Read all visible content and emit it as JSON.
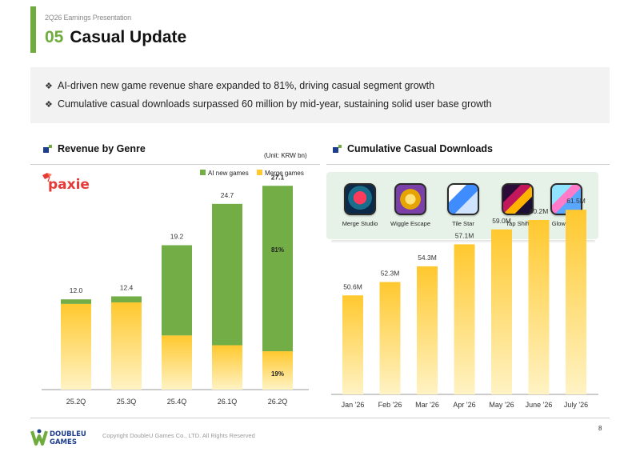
{
  "header": {
    "kicker": "2Q26 Earnings Presentation",
    "section_number": "05",
    "title": "Casual Update"
  },
  "summary": [
    "AI-driven new game revenue share expanded to 81%, driving casual segment growth",
    "Cumulative casual downloads surpassed 60 million by mid-year, sustaining solid user base growth"
  ],
  "left_panel": {
    "heading": "Revenue by Genre",
    "unit": "(Unit: KRW bn)",
    "logo_text": "paxie"
  },
  "right_panel": {
    "heading": "Cumulative Casual Downloads",
    "games": [
      {
        "name": "Merge Studio",
        "icon": "merge-studio-icon"
      },
      {
        "name": "Wiggle Escape",
        "icon": "wiggle-escape-icon"
      },
      {
        "name": "Tile Star",
        "icon": "tile-star-icon"
      },
      {
        "name": "Tap Shift",
        "icon": "tap-shift-icon"
      },
      {
        "name": "Glow Tales",
        "icon": "glow-tales-icon"
      }
    ]
  },
  "colors": {
    "accent": "#6fac3d",
    "ai_green": "#72ad46",
    "merge_yellow_top": "#ffc82e",
    "merge_yellow_bottom": "#fff3c4",
    "navy": "#1e3e8c"
  },
  "chart_data": [
    {
      "type": "bar",
      "stacked": true,
      "categories": [
        "25.2Q",
        "25.3Q",
        "25.4Q",
        "26.1Q",
        "26.2Q"
      ],
      "totals": [
        12.0,
        12.4,
        19.2,
        24.7,
        27.1
      ],
      "total_labels": [
        "12.0",
        "12.4",
        "19.2",
        "24.7",
        "27.1"
      ],
      "series": [
        {
          "name": "Merge games",
          "values": [
            11.4,
            11.6,
            7.2,
            5.9,
            5.1
          ]
        },
        {
          "name": "AI new games",
          "values": [
            0.6,
            0.8,
            12.0,
            18.8,
            22.0
          ]
        }
      ],
      "share_labels": [
        {
          "category": "26.2Q",
          "series": "AI new games",
          "text": "81%"
        },
        {
          "category": "26.2Q",
          "series": "Merge games",
          "text": "19%"
        }
      ],
      "legend": [
        "AI new games",
        "Merge games"
      ],
      "legend_position": "top-right",
      "ylim": [
        0,
        30
      ],
      "grid": false
    },
    {
      "type": "bar",
      "categories": [
        "Jan '26",
        "Feb '26",
        "Mar '26",
        "Apr '26",
        "May '26",
        "June '26",
        "July '26"
      ],
      "values": [
        50.6,
        52.3,
        54.3,
        57.1,
        59.0,
        60.2,
        61.5
      ],
      "value_labels": [
        "50.6M",
        "52.3M",
        "54.3M",
        "57.1M",
        "59.0M",
        "60.2M",
        "61.5M"
      ],
      "ylim": [
        38,
        66
      ],
      "grid": false
    }
  ],
  "footer": {
    "logo_line1": "DOUBLEU",
    "logo_line2": "GAMES",
    "copyright": "Copyright DoubleU Games Co., LTD. All Rights Reserved",
    "page_number": "8"
  }
}
